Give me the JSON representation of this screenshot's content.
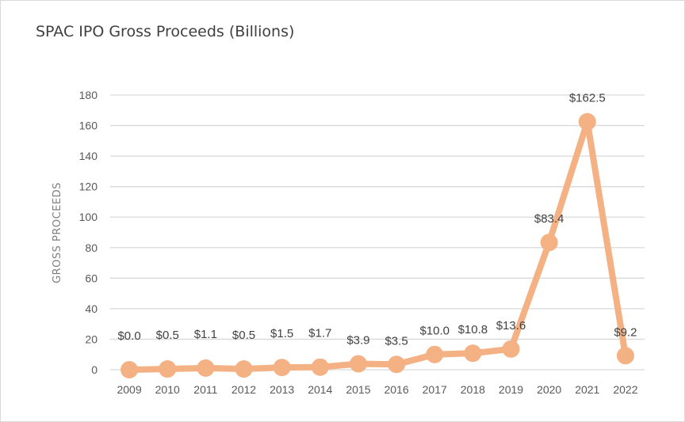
{
  "chart_data": {
    "type": "line",
    "title": "SPAC IPO Gross Proceeds (Billions)",
    "xlabel": "",
    "ylabel": "GROSS PROCEEDS",
    "categories": [
      "2009",
      "2010",
      "2011",
      "2012",
      "2013",
      "2014",
      "2015",
      "2016",
      "2017",
      "2018",
      "2019",
      "2020",
      "2021",
      "2022"
    ],
    "series": [
      {
        "values": [
          0.0,
          0.5,
          1.1,
          0.5,
          1.5,
          1.7,
          3.9,
          3.5,
          10.0,
          10.8,
          13.6,
          83.4,
          162.5,
          9.2
        ],
        "labels": [
          "$0.0",
          "$0.5",
          "$1.1",
          "$0.5",
          "$1.5",
          "$1.7",
          "$3.9",
          "$3.5",
          "$10.0",
          "$10.8",
          "$13.6",
          "$83.4",
          "$162.5",
          "$9.2"
        ]
      }
    ],
    "ylim": [
      0,
      180
    ],
    "yticks": [
      0,
      20,
      40,
      60,
      80,
      100,
      120,
      140,
      160,
      180
    ],
    "grid": true,
    "legend": "none",
    "colors": {
      "line": "#F4B183",
      "grid": "#d9d9d9"
    }
  }
}
